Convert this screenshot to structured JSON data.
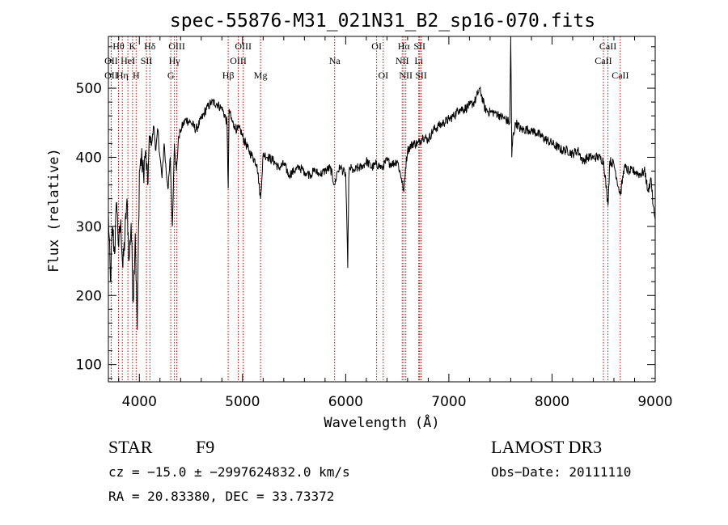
{
  "chart_data": {
    "type": "line",
    "title": "spec-55876-M31_021N31_B2_sp16-070.fits",
    "xlabel": "Wavelength (Å)",
    "ylabel": "Flux (relative)",
    "xlim": [
      3700,
      9000
    ],
    "ylim": [
      75,
      575
    ],
    "xticks": [
      4000,
      5000,
      6000,
      7000,
      8000,
      9000
    ],
    "yticks": [
      100,
      200,
      300,
      400,
      500
    ],
    "grid": false,
    "line_color": "#000000",
    "marker_color": "#cc0000",
    "lines": [
      {
        "label": "Hθ",
        "x": 3798,
        "row": 0
      },
      {
        "label": "OII",
        "x": 3727,
        "row": 1
      },
      {
        "label": "OII",
        "x": 3727,
        "row": 2
      },
      {
        "label": "K",
        "x": 3934,
        "row": 0
      },
      {
        "label": "HeI",
        "x": 3889,
        "row": 1
      },
      {
        "label": "Hη",
        "x": 3835,
        "row": 2
      },
      {
        "label": "Hδ",
        "x": 4102,
        "row": 0
      },
      {
        "label": "SII",
        "x": 4069,
        "row": 1
      },
      {
        "label": "H",
        "x": 3969,
        "row": 2
      },
      {
        "label": "OIII",
        "x": 4363,
        "row": 0
      },
      {
        "label": "Hγ",
        "x": 4340,
        "row": 1
      },
      {
        "label": "G",
        "x": 4305,
        "row": 2
      },
      {
        "label": "OIII",
        "x": 5007,
        "row": 0
      },
      {
        "label": "OIII",
        "x": 4959,
        "row": 1
      },
      {
        "label": "Hβ",
        "x": 4861,
        "row": 2
      },
      {
        "label": "Mg",
        "x": 5175,
        "row": 2
      },
      {
        "label": "Na",
        "x": 5893,
        "row": 1
      },
      {
        "label": "OI",
        "x": 6300,
        "row": 0
      },
      {
        "label": "OI",
        "x": 6364,
        "row": 2
      },
      {
        "label": "Hα",
        "x": 6563,
        "row": 0
      },
      {
        "label": "NII",
        "x": 6548,
        "row": 1
      },
      {
        "label": "NII",
        "x": 6583,
        "row": 2
      },
      {
        "label": "SII",
        "x": 6716,
        "row": 0
      },
      {
        "label": "Li",
        "x": 6708,
        "row": 1
      },
      {
        "label": "SII",
        "x": 6731,
        "row": 2
      },
      {
        "label": "CaII",
        "x": 8542,
        "row": 0
      },
      {
        "label": "CaII",
        "x": 8498,
        "row": 1
      },
      {
        "label": "CaII",
        "x": 8662,
        "row": 2
      }
    ],
    "spectrum": {
      "x": [
        3700,
        3720,
        3740,
        3760,
        3780,
        3800,
        3820,
        3840,
        3860,
        3880,
        3900,
        3920,
        3940,
        3960,
        3980,
        4000,
        4020,
        4040,
        4060,
        4080,
        4100,
        4120,
        4140,
        4160,
        4180,
        4200,
        4220,
        4240,
        4260,
        4280,
        4300,
        4320,
        4340,
        4360,
        4380,
        4400,
        4450,
        4500,
        4550,
        4600,
        4650,
        4700,
        4750,
        4800,
        4830,
        4850,
        4861,
        4870,
        4890,
        4920,
        4950,
        4980,
        5000,
        5030,
        5060,
        5100,
        5140,
        5175,
        5200,
        5250,
        5300,
        5350,
        5400,
        5450,
        5500,
        5550,
        5600,
        5650,
        5700,
        5750,
        5800,
        5850,
        5893,
        5920,
        5950,
        6000,
        6020,
        6030,
        6040,
        6080,
        6120,
        6160,
        6200,
        6250,
        6300,
        6350,
        6400,
        6450,
        6500,
        6540,
        6563,
        6580,
        6600,
        6650,
        6700,
        6750,
        6800,
        6850,
        6900,
        6950,
        7000,
        7050,
        7100,
        7150,
        7200,
        7250,
        7300,
        7350,
        7400,
        7450,
        7500,
        7550,
        7590,
        7600,
        7610,
        7620,
        7650,
        7700,
        7750,
        7800,
        7850,
        7900,
        7950,
        8000,
        8050,
        8100,
        8150,
        8200,
        8250,
        8300,
        8350,
        8400,
        8450,
        8500,
        8542,
        8560,
        8600,
        8662,
        8700,
        8750,
        8800,
        8850,
        8900,
        8930,
        8960,
        8980,
        9000
      ],
      "y": [
        320,
        220,
        300,
        260,
        335,
        270,
        310,
        240,
        285,
        340,
        250,
        305,
        190,
        290,
        150,
        380,
        400,
        375,
        410,
        360,
        430,
        420,
        445,
        410,
        440,
        400,
        370,
        420,
        380,
        355,
        400,
        300,
        420,
        380,
        430,
        440,
        455,
        450,
        440,
        455,
        470,
        480,
        478,
        470,
        460,
        450,
        355,
        470,
        455,
        445,
        440,
        440,
        430,
        420,
        410,
        400,
        390,
        340,
        405,
        400,
        395,
        385,
        390,
        375,
        380,
        385,
        380,
        375,
        380,
        375,
        380,
        385,
        360,
        380,
        385,
        375,
        240,
        370,
        385,
        380,
        385,
        385,
        395,
        385,
        390,
        385,
        395,
        390,
        395,
        370,
        350,
        385,
        410,
        420,
        420,
        430,
        425,
        440,
        445,
        450,
        455,
        460,
        470,
        470,
        475,
        480,
        500,
        470,
        465,
        465,
        460,
        455,
        450,
        570,
        400,
        430,
        450,
        440,
        440,
        440,
        435,
        430,
        425,
        420,
        415,
        410,
        410,
        405,
        410,
        395,
        400,
        400,
        400,
        395,
        330,
        395,
        390,
        345,
        385,
        380,
        380,
        375,
        380,
        350,
        370,
        330,
        310
      ]
    }
  },
  "footer": {
    "object_class": "STAR",
    "subclass": "F9",
    "survey": "LAMOST DR3",
    "redshift": "cz = −15.0 ± −2997624832.0 km/s",
    "obs_date": "Obs−Date: 20111110",
    "coords": "RA =  20.83380, DEC =  33.73372"
  }
}
